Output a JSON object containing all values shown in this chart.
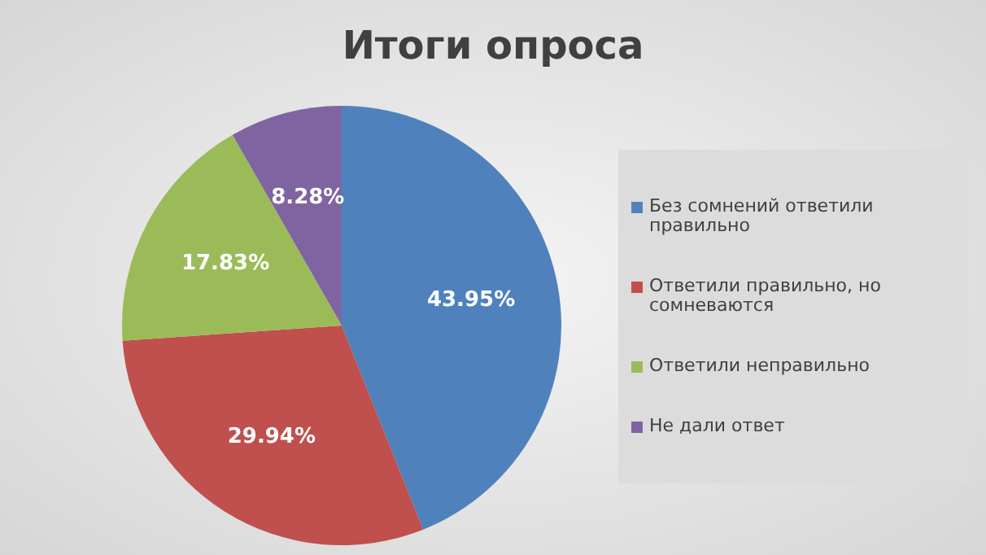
{
  "chart_data": {
    "type": "pie",
    "title": "Итоги опроса",
    "categories": [
      "Без сомнений ответили правильно",
      "Ответили правильно, но сомневаются",
      "Ответили неправильно",
      "Не дали ответ"
    ],
    "values": [
      43.95,
      29.94,
      17.83,
      8.28
    ],
    "colors": [
      "#4f81bd",
      "#c0504d",
      "#9bbb59",
      "#8064a2"
    ],
    "value_labels": [
      "43.95%",
      "29.94%",
      "17.83%",
      "8.28%"
    ],
    "legend": "right"
  }
}
